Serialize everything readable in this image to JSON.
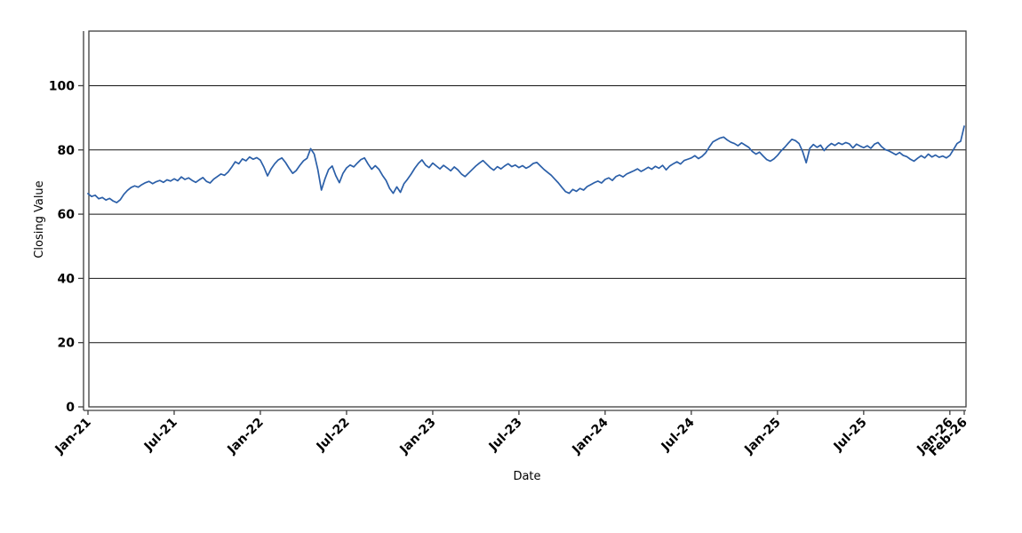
{
  "figure": {
    "background_color": "#ffffff",
    "frame_color": "#3d3d3d",
    "gridline_color": "#141414"
  },
  "chart_data": {
    "type": "line",
    "title": "",
    "xlabel": "Date",
    "ylabel": "Closing Value",
    "ylim": [
      0,
      117
    ],
    "y_ticks": [
      0,
      20,
      40,
      60,
      80,
      100
    ],
    "x_tick_labels": [
      "Jan-21",
      "Jul-21",
      "Jan-22",
      "Jul-22",
      "Jan-23",
      "Jul-23",
      "Jan-24",
      "Jul-24",
      "Jan-25",
      "Jul-25",
      "Jan-26",
      "Feb-26"
    ],
    "x_tick_month_offsets": [
      0,
      6,
      12,
      18,
      24,
      30,
      36,
      42,
      48,
      54,
      60,
      61
    ],
    "x_unit": "months since Jan-2021, values sampled ~weekly (0.25 month interval)",
    "grid": "horizontal gridlines at major y ticks",
    "legend": "none",
    "series": [
      {
        "name": "Closing Value",
        "color": "#2b5fa8",
        "sample_interval_months": 0.25,
        "start_label": "Jan-21",
        "end_label": "Feb-26",
        "values": [
          66.4,
          65.5,
          65.9,
          64.8,
          65.2,
          64.4,
          64.9,
          64.1,
          63.6,
          64.5,
          66.2,
          67.4,
          68.3,
          68.8,
          68.4,
          69.2,
          69.8,
          70.2,
          69.5,
          70.1,
          70.5,
          69.9,
          70.7,
          70.3,
          71.0,
          70.4,
          71.6,
          70.8,
          71.3,
          70.5,
          69.9,
          70.7,
          71.4,
          70.2,
          69.7,
          70.9,
          71.7,
          72.5,
          72.1,
          73.1,
          74.6,
          76.3,
          75.7,
          77.2,
          76.6,
          77.8,
          77.1,
          77.6,
          76.8,
          74.6,
          71.9,
          74.1,
          75.7,
          76.9,
          77.5,
          76.1,
          74.3,
          72.7,
          73.6,
          75.2,
          76.6,
          77.4,
          80.4,
          78.7,
          73.9,
          67.5,
          71.0,
          73.9,
          75.0,
          72.0,
          69.8,
          72.7,
          74.4,
          75.3,
          74.7,
          75.9,
          77.0,
          77.5,
          75.6,
          74.0,
          75.1,
          74.0,
          72.1,
          70.5,
          68.0,
          66.5,
          68.5,
          66.8,
          69.5,
          70.9,
          72.5,
          74.3,
          75.8,
          76.9,
          75.3,
          74.5,
          75.9,
          75.0,
          74.1,
          75.2,
          74.4,
          73.5,
          74.7,
          73.8,
          72.5,
          71.7,
          72.8,
          73.9,
          75.0,
          75.9,
          76.7,
          75.6,
          74.5,
          73.7,
          74.8,
          74.1,
          75.0,
          75.7,
          74.8,
          75.3,
          74.5,
          75.1,
          74.3,
          74.9,
          75.8,
          76.1,
          75.0,
          73.9,
          73.0,
          72.1,
          70.9,
          69.7,
          68.3,
          67.0,
          66.5,
          67.7,
          67.1,
          68.0,
          67.5,
          68.6,
          69.2,
          69.8,
          70.3,
          69.7,
          70.8,
          71.3,
          70.5,
          71.7,
          72.2,
          71.6,
          72.5,
          73.0,
          73.5,
          74.1,
          73.3,
          73.9,
          74.6,
          74.0,
          74.9,
          74.3,
          75.2,
          73.8,
          75.0,
          75.7,
          76.3,
          75.6,
          76.7,
          77.1,
          77.5,
          78.2,
          77.3,
          78.0,
          79.1,
          80.9,
          82.5,
          83.1,
          83.7,
          84.0,
          83.1,
          82.4,
          82.0,
          81.3,
          82.2,
          81.5,
          80.8,
          79.5,
          78.7,
          79.3,
          78.1,
          77.0,
          76.5,
          77.2,
          78.3,
          79.7,
          80.8,
          82.1,
          83.3,
          82.9,
          82.0,
          79.5,
          76.0,
          80.5,
          81.7,
          80.8,
          81.5,
          79.8,
          81.1,
          82.0,
          81.4,
          82.2,
          81.7,
          82.3,
          81.9,
          80.6,
          81.8,
          81.2,
          80.7,
          81.3,
          80.5,
          81.8,
          82.3,
          81.0,
          80.1,
          79.7,
          79.1,
          78.5,
          79.2,
          78.3,
          77.9,
          77.1,
          76.5,
          77.4,
          78.2,
          77.5,
          78.7,
          77.8,
          78.4,
          77.7,
          78.1,
          77.5,
          78.3,
          80.1,
          82.0,
          82.7,
          87.4
        ]
      }
    ]
  }
}
